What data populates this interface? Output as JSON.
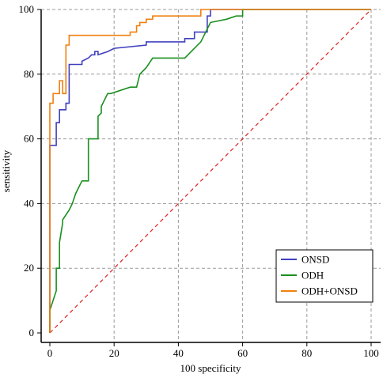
{
  "chart_data": {
    "type": "line",
    "title": "",
    "xlabel": "100 specificity",
    "ylabel": "sensitivity",
    "xlim": [
      0,
      100
    ],
    "ylim": [
      0,
      100
    ],
    "xticks": [
      0,
      20,
      40,
      60,
      80,
      100
    ],
    "yticks": [
      0,
      20,
      40,
      60,
      80,
      100
    ],
    "grid": true,
    "legend_position": "bottom-right",
    "series": [
      {
        "name": "ONSD",
        "color": "#4040c0",
        "x": [
          0,
          0,
          2,
          2,
          3,
          3,
          5,
          5,
          6,
          6,
          10,
          10,
          12,
          13,
          14,
          14,
          15,
          15,
          18,
          20,
          30,
          30,
          42,
          42,
          45,
          45,
          49,
          49,
          50,
          50,
          100
        ],
        "y": [
          0,
          58,
          58,
          65,
          65,
          69,
          69,
          71,
          71,
          83,
          83,
          84,
          85,
          86,
          86,
          87,
          87,
          86,
          87,
          88,
          89,
          90,
          90,
          91,
          91,
          93,
          93,
          98,
          98,
          100,
          100
        ]
      },
      {
        "name": "ODH",
        "color": "#1a9020",
        "x": [
          0,
          0,
          2,
          2,
          3,
          3,
          4,
          4,
          6,
          7,
          8,
          9,
          10,
          10,
          12,
          12,
          15,
          15,
          16,
          16,
          17,
          18,
          19,
          25,
          27,
          28,
          30,
          32,
          32,
          35,
          42,
          45,
          47,
          48,
          50,
          55,
          58,
          60,
          60,
          100
        ],
        "y": [
          0,
          7,
          13,
          20,
          20,
          28,
          34,
          35,
          38,
          40,
          43,
          45,
          47,
          47,
          47,
          60,
          60,
          67,
          68,
          70,
          72,
          74,
          74,
          76,
          76,
          80,
          82,
          85,
          85,
          85,
          85,
          88,
          90,
          92,
          96,
          97,
          98,
          98,
          100,
          100
        ]
      },
      {
        "name": "ODH+ONSD",
        "color": "#f08010",
        "x": [
          0,
          0,
          1,
          1,
          2,
          2,
          3,
          3,
          4,
          4,
          5,
          5,
          6,
          6,
          7,
          7,
          25,
          25,
          27,
          27,
          28,
          28,
          30,
          30,
          32,
          32,
          47,
          47,
          100
        ],
        "y": [
          0,
          71,
          71,
          74,
          74,
          74,
          74,
          78,
          78,
          74,
          74,
          89,
          89,
          92,
          92,
          92,
          92,
          93,
          93,
          95,
          95,
          96,
          96,
          97,
          97,
          98,
          98,
          100,
          100
        ]
      },
      {
        "name": "",
        "color": "#e02020",
        "style": "dashed",
        "x": [
          0,
          100
        ],
        "y": [
          0,
          100
        ]
      }
    ],
    "legend": [
      "ONSD",
      "ODH",
      "ODH+ONSD"
    ]
  }
}
